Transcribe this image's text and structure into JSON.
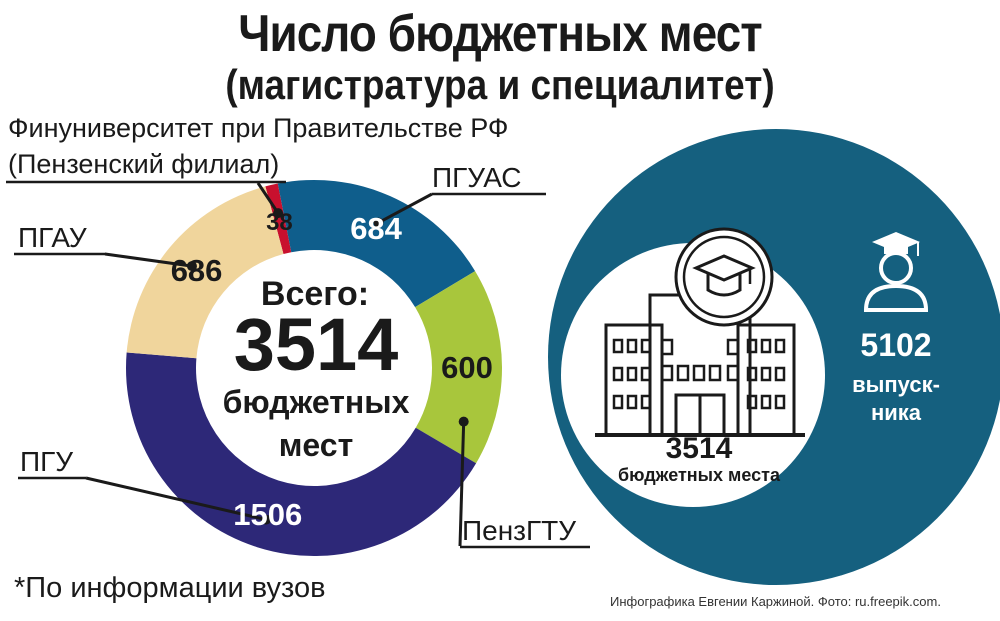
{
  "title": {
    "line1": "Число бюджетных мест",
    "line2": "(магистратура и специалитет)"
  },
  "chart_data": {
    "type": "pie",
    "title": "Число бюджетных мест (магистратура и специалитет)",
    "center": {
      "label_top": "Всего:",
      "total": "3514",
      "label_line2": "бюджетных",
      "label_line3": "мест"
    },
    "slices": [
      {
        "name": "Финуниверситет при Правительстве РФ (Пензенский филиал)",
        "value": 38,
        "color": "#c8102e"
      },
      {
        "name": "ПГУАС",
        "value": 684,
        "color": "#0f5e8c"
      },
      {
        "name": "ПензГТУ",
        "value": 600,
        "color": "#a8c63c"
      },
      {
        "name": "ПГУ",
        "value": 1506,
        "color": "#2d2878"
      },
      {
        "name": "ПГАУ",
        "value": 686,
        "color": "#f0d59c"
      }
    ]
  },
  "labels": {
    "fin_line1": "Финуниверситет при Правительстве РФ",
    "fin_line2": "(Пензенский филиал)",
    "pguas": "ПГУАС",
    "pgau": "ПГАУ",
    "pgu": "ПГУ",
    "penzgtu": "ПензГТУ"
  },
  "infographic": {
    "places_value": "3514",
    "places_label": "бюджетных места",
    "graduates_value": "5102",
    "graduates_line1": "выпуск-",
    "graduates_line2": "ника",
    "circle_color": "#15607f"
  },
  "footnote": "*По информации вузов",
  "credit": "Инфографика  Евгении Каржиной.  Фото: ru.freepik.com."
}
